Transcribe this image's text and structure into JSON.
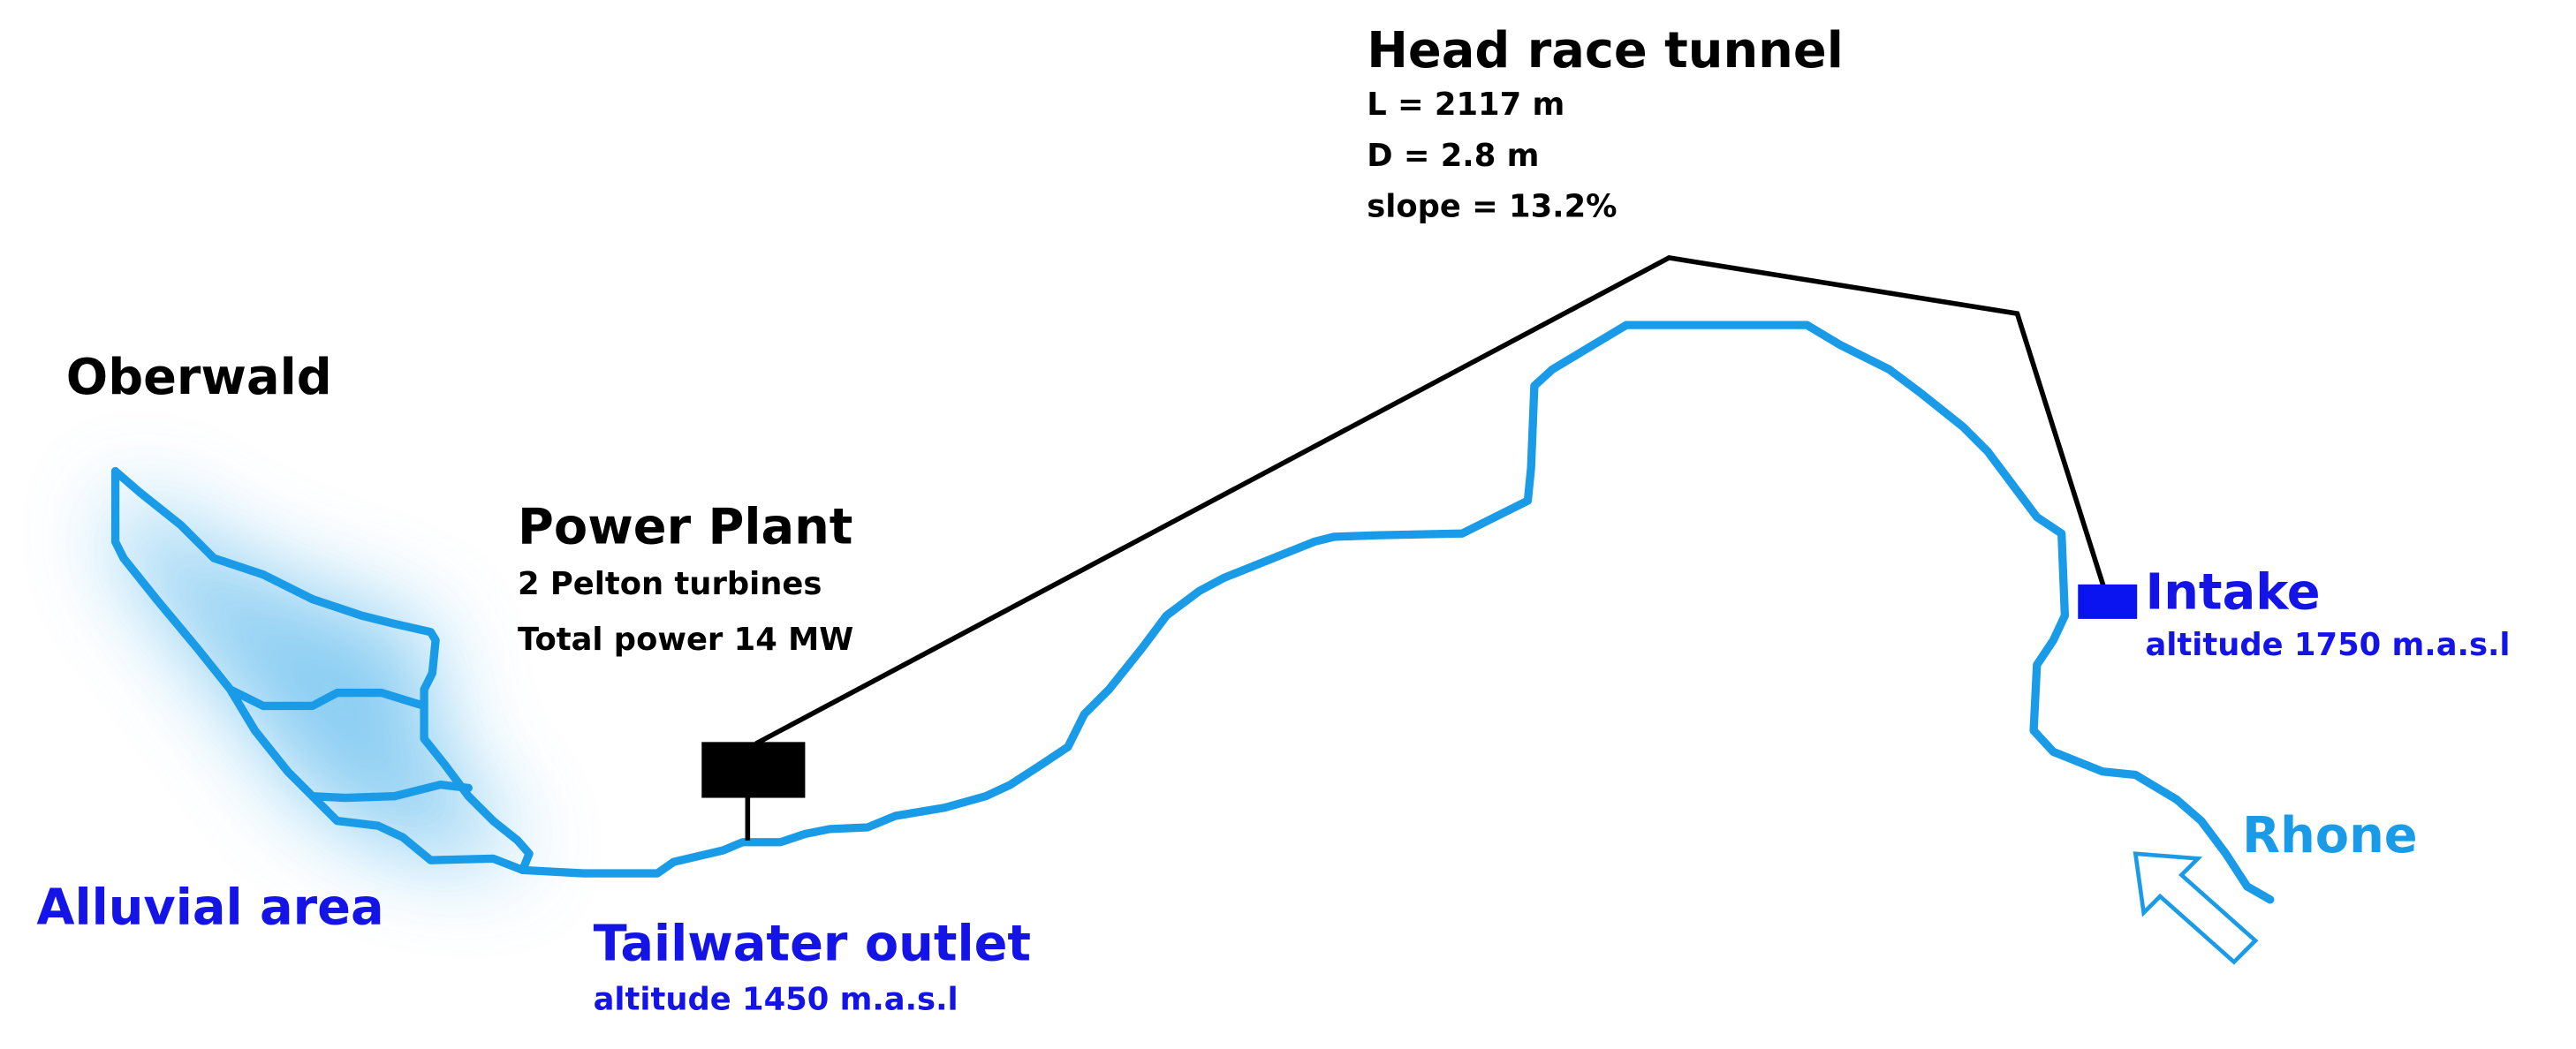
{
  "labels": {
    "oberwald": "Oberwald",
    "alluvial_area": "Alluvial area",
    "power_plant": {
      "title": "Power Plant",
      "lines": [
        "2 Pelton turbines",
        "Total power 14 MW"
      ]
    },
    "head_race_tunnel": {
      "title": "Head race tunnel",
      "lines": [
        "L = 2117 m",
        "D = 2.8 m",
        "slope = 13.2%"
      ]
    },
    "intake": {
      "title": "Intake",
      "subtitle": "altitude 1750 m.a.s.l"
    },
    "tailwater_outlet": {
      "title": "Tailwater outlet",
      "subtitle": "altitude 1450 m.a.s.l"
    },
    "rhone": "Rhone"
  }
}
